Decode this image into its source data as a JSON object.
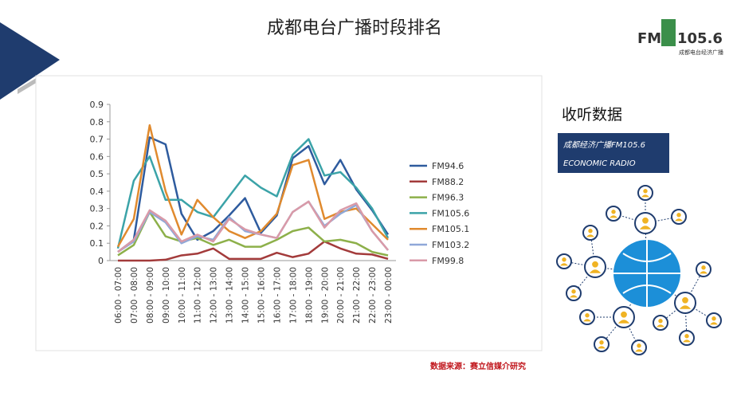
{
  "slide_title": "成都电台广播时段排名",
  "logo": {
    "mark": "FM",
    "number": "105.6",
    "caption": "成都电台经济广播"
  },
  "side_heading": "收听数据",
  "side_box": {
    "line1": "成都经济广播FM105.6",
    "line2": "ECONOMIC RADIO"
  },
  "source": "数据来源：赛立信媒介研究",
  "chart_data": {
    "type": "line",
    "categories": [
      "06:00 - 07:00",
      "07:00 - 08:00",
      "08:00 - 09:00",
      "09:00 - 10:00",
      "10:00 - 11:00",
      "11:00 - 12:00",
      "12:00 - 13:00",
      "13:00 - 14:00",
      "14:00 - 15:00",
      "15:00 - 16:00",
      "16:00 - 17:00",
      "17:00 - 18:00",
      "18:00 - 19:00",
      "19:00 - 20:00",
      "20:00 - 21:00",
      "21:00 - 22:00",
      "22:00 - 23:00",
      "23:00 - 00:00"
    ],
    "series": [
      {
        "name": "FM94.6",
        "color": "#2e5b9e",
        "values": [
          0.05,
          0.12,
          0.71,
          0.67,
          0.27,
          0.12,
          0.17,
          0.26,
          0.36,
          0.16,
          0.26,
          0.59,
          0.66,
          0.44,
          0.58,
          0.41,
          0.29,
          0.15
        ]
      },
      {
        "name": "FM88.2",
        "color": "#a33b3b",
        "values": [
          0,
          0,
          0,
          0.005,
          0.03,
          0.04,
          0.07,
          0.01,
          0.01,
          0.01,
          0.045,
          0.02,
          0.04,
          0.11,
          0.07,
          0.04,
          0.035,
          0.01
        ]
      },
      {
        "name": "FM96.3",
        "color": "#8db04a",
        "values": [
          0.03,
          0.09,
          0.28,
          0.14,
          0.11,
          0.13,
          0.09,
          0.12,
          0.08,
          0.08,
          0.12,
          0.17,
          0.19,
          0.11,
          0.12,
          0.1,
          0.05,
          0.03
        ]
      },
      {
        "name": "FM105.6",
        "color": "#3ba3a8",
        "values": [
          0.07,
          0.46,
          0.6,
          0.35,
          0.35,
          0.28,
          0.25,
          0.37,
          0.49,
          0.42,
          0.37,
          0.61,
          0.7,
          0.49,
          0.51,
          0.42,
          0.3,
          0.13
        ]
      },
      {
        "name": "FM105.1",
        "color": "#e08a2e",
        "values": [
          0.08,
          0.24,
          0.78,
          0.4,
          0.15,
          0.35,
          0.25,
          0.17,
          0.13,
          0.17,
          0.27,
          0.55,
          0.58,
          0.24,
          0.28,
          0.3,
          0.21,
          0.12
        ]
      },
      {
        "name": "FM103.2",
        "color": "#8fa8d8",
        "values": [
          0.05,
          0.11,
          0.28,
          0.22,
          0.1,
          0.14,
          0.12,
          0.25,
          0.17,
          0.15,
          0.13,
          0.28,
          0.34,
          0.2,
          0.27,
          0.32,
          0.17,
          0.06
        ]
      },
      {
        "name": "FM99.8",
        "color": "#d99aa8",
        "values": [
          0.05,
          0.12,
          0.29,
          0.23,
          0.11,
          0.15,
          0.11,
          0.24,
          0.18,
          0.15,
          0.13,
          0.28,
          0.34,
          0.19,
          0.29,
          0.33,
          0.17,
          0.06
        ]
      }
    ],
    "ylim": [
      0,
      0.9
    ],
    "yticks": [
      0,
      0.1,
      0.2,
      0.3,
      0.4,
      0.5,
      0.6,
      0.7,
      0.8,
      0.9
    ],
    "grid": false,
    "legend": "right"
  }
}
